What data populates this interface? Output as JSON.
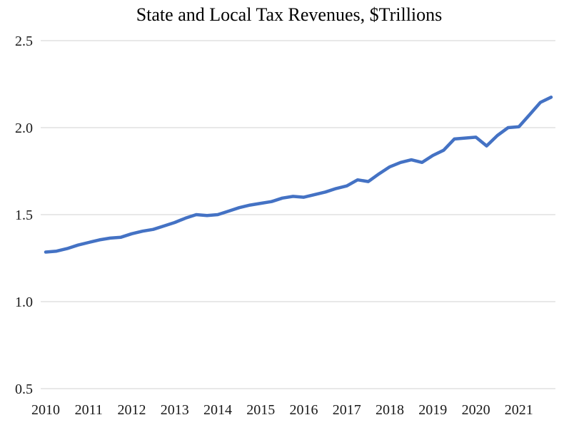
{
  "chart_data": {
    "type": "line",
    "title": "State and Local Tax Revenues, $Trillions",
    "xlabel": "",
    "ylabel": "",
    "ylim": [
      0.5,
      2.5
    ],
    "grid": "horizontal",
    "legend": "none",
    "line_color": "#4472C4",
    "gridline_color": "#D9D9D9",
    "axis_text_color": "#1a1a1a",
    "frequency": "quarterly",
    "year_labels": [
      "2010",
      "2011",
      "2012",
      "2013",
      "2014",
      "2015",
      "2016",
      "2017",
      "2018",
      "2019",
      "2020",
      "2021"
    ],
    "y_ticks": [
      {
        "value": 2.5,
        "label": "2.5"
      },
      {
        "value": 2.0,
        "label": "2.0"
      },
      {
        "value": 1.5,
        "label": "1.5"
      },
      {
        "value": 1.0,
        "label": "1.0"
      },
      {
        "value": 0.5,
        "label": "0.5"
      }
    ],
    "x": [
      "2010 Q1",
      "2010 Q2",
      "2010 Q3",
      "2010 Q4",
      "2011 Q1",
      "2011 Q2",
      "2011 Q3",
      "2011 Q4",
      "2012 Q1",
      "2012 Q2",
      "2012 Q3",
      "2012 Q4",
      "2013 Q1",
      "2013 Q2",
      "2013 Q3",
      "2013 Q4",
      "2014 Q1",
      "2014 Q2",
      "2014 Q3",
      "2014 Q4",
      "2015 Q1",
      "2015 Q2",
      "2015 Q3",
      "2015 Q4",
      "2016 Q1",
      "2016 Q2",
      "2016 Q3",
      "2016 Q4",
      "2017 Q1",
      "2017 Q2",
      "2017 Q3",
      "2017 Q4",
      "2018 Q1",
      "2018 Q2",
      "2018 Q3",
      "2018 Q4",
      "2019 Q1",
      "2019 Q2",
      "2019 Q3",
      "2019 Q4",
      "2020 Q1",
      "2020 Q2",
      "2020 Q3",
      "2020 Q4",
      "2021 Q1",
      "2021 Q2",
      "2021 Q3",
      "2021 Q4"
    ],
    "values": [
      1.285,
      1.29,
      1.305,
      1.325,
      1.34,
      1.355,
      1.365,
      1.37,
      1.39,
      1.405,
      1.415,
      1.435,
      1.455,
      1.48,
      1.5,
      1.495,
      1.5,
      1.52,
      1.54,
      1.555,
      1.565,
      1.575,
      1.595,
      1.605,
      1.6,
      1.615,
      1.63,
      1.65,
      1.665,
      1.7,
      1.69,
      1.735,
      1.775,
      1.8,
      1.815,
      1.8,
      1.84,
      1.87,
      1.935,
      1.94,
      1.945,
      1.895,
      1.955,
      2.0,
      2.005,
      2.075,
      2.145,
      2.175
    ]
  }
}
